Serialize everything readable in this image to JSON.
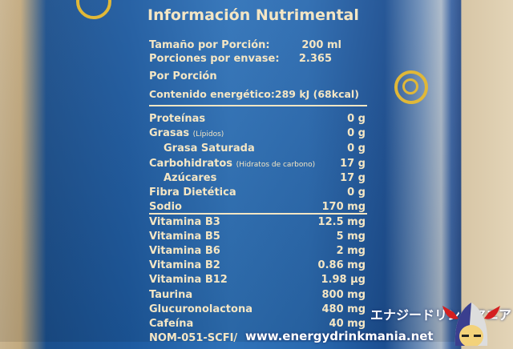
{
  "label": {
    "title": "Información Nutrimental",
    "serving_size": {
      "label": "Tamaño por Porción:",
      "value": "200 ml"
    },
    "servings": {
      "label": "Porciones por envase:",
      "value": "2.365"
    },
    "per_serving": "Por Porción",
    "energy": {
      "label": "Contenido energético:",
      "value": "289 kJ (68kcal)"
    },
    "rows": [
      {
        "label": "Proteínas",
        "note": "",
        "value": "0 g"
      },
      {
        "label": "Grasas",
        "note": "(Lípidos)",
        "value": "0 g"
      },
      {
        "label": "Grasa Saturada",
        "note": "",
        "value": "0 g",
        "indent": true
      },
      {
        "label": "Carbohidratos",
        "note": "(Hidratos de carbono)",
        "value": "17 g"
      },
      {
        "label": "Azúcares",
        "note": "",
        "value": "17 g",
        "indent": true
      },
      {
        "label": "Fibra Dietética",
        "note": "",
        "value": "0 g"
      },
      {
        "label": "Sodio",
        "note": "",
        "value": "170 mg"
      },
      {
        "label": "Vitamina B3",
        "note": "",
        "value": "12.5 mg"
      },
      {
        "label": "Vitamina B5",
        "note": "",
        "value": "5 mg"
      },
      {
        "label": "Vitamina B6",
        "note": "",
        "value": "2 mg"
      },
      {
        "label": "Vitamina B2",
        "note": "",
        "value": "0.86 mg"
      },
      {
        "label": "Vitamina B12",
        "note": "",
        "value": "1.98 µg"
      },
      {
        "label": "Taurina",
        "note": "",
        "value": "800 mg"
      },
      {
        "label": "Glucuronolactona",
        "note": "",
        "value": "480 mg"
      },
      {
        "label": "Cafeína",
        "note": "",
        "value": "40 mg"
      }
    ],
    "footer": "NOM-051-SCFI/"
  },
  "watermark": {
    "jp": "エナジードリンクマニア",
    "url": "www.energydrinkmania.net"
  }
}
